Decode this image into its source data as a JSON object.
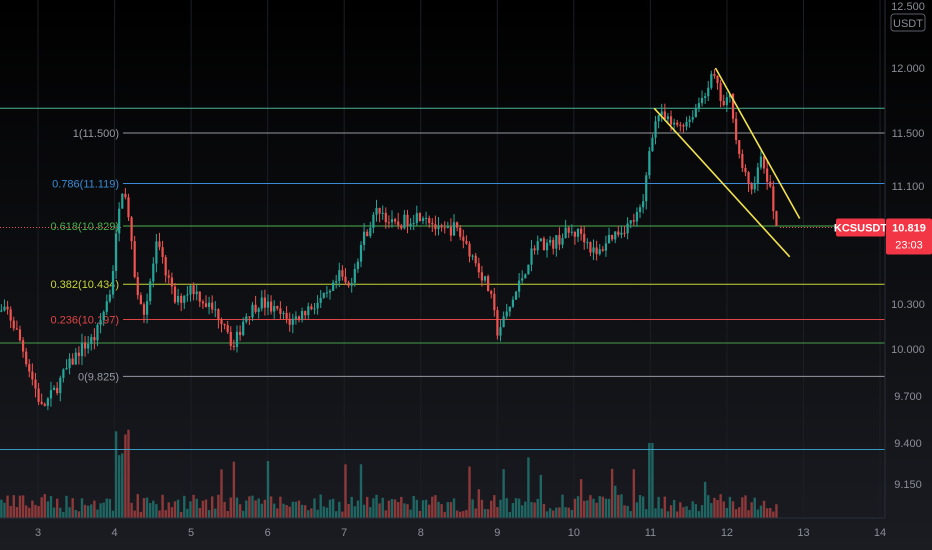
{
  "chart_data": {
    "type": "candlestick",
    "symbol": "KCSUSDT",
    "currency": "USDT",
    "last_price": "10.819",
    "countdown": "23:03",
    "x_ticks": [
      "3",
      "4",
      "5",
      "6",
      "7",
      "8",
      "9",
      "10",
      "11",
      "12",
      "13",
      "14"
    ],
    "y_ticks": [
      "12.500",
      "12.000",
      "11.500",
      "11.100",
      "10.300",
      "10.000",
      "9.700",
      "9.400",
      "9.150"
    ],
    "price_path": [
      [
        2.4,
        10.22
      ],
      [
        2.6,
        10.25
      ],
      [
        2.75,
        10.08
      ],
      [
        2.9,
        9.85
      ],
      [
        3.05,
        9.62
      ],
      [
        3.2,
        9.72
      ],
      [
        3.35,
        9.85
      ],
      [
        3.55,
        10.0
      ],
      [
        3.75,
        10.08
      ],
      [
        3.95,
        10.4
      ],
      [
        4.05,
        10.9
      ],
      [
        4.12,
        11.15
      ],
      [
        4.2,
        10.78
      ],
      [
        4.3,
        10.35
      ],
      [
        4.4,
        10.25
      ],
      [
        4.55,
        10.7
      ],
      [
        4.65,
        10.55
      ],
      [
        4.8,
        10.3
      ],
      [
        5.0,
        10.42
      ],
      [
        5.2,
        10.3
      ],
      [
        5.45,
        10.18
      ],
      [
        5.55,
        10.0
      ],
      [
        5.7,
        10.22
      ],
      [
        5.9,
        10.32
      ],
      [
        6.1,
        10.25
      ],
      [
        6.3,
        10.18
      ],
      [
        6.55,
        10.28
      ],
      [
        6.8,
        10.35
      ],
      [
        6.95,
        10.5
      ],
      [
        7.05,
        10.4
      ],
      [
        7.25,
        10.75
      ],
      [
        7.45,
        10.95
      ],
      [
        7.65,
        10.82
      ],
      [
        7.85,
        10.88
      ],
      [
        8.05,
        10.92
      ],
      [
        8.25,
        10.78
      ],
      [
        8.45,
        10.82
      ],
      [
        8.6,
        10.7
      ],
      [
        8.75,
        10.55
      ],
      [
        8.9,
        10.38
      ],
      [
        9.0,
        10.12
      ],
      [
        9.1,
        10.2
      ],
      [
        9.3,
        10.45
      ],
      [
        9.5,
        10.72
      ],
      [
        9.7,
        10.7
      ],
      [
        9.9,
        10.78
      ],
      [
        10.1,
        10.78
      ],
      [
        10.3,
        10.62
      ],
      [
        10.45,
        10.75
      ],
      [
        10.6,
        10.8
      ],
      [
        10.75,
        10.85
      ],
      [
        10.9,
        10.95
      ],
      [
        11.0,
        11.45
      ],
      [
        11.1,
        11.65
      ],
      [
        11.3,
        11.55
      ],
      [
        11.5,
        11.6
      ],
      [
        11.7,
        11.8
      ],
      [
        11.82,
        11.95
      ],
      [
        11.95,
        11.7
      ],
      [
        12.05,
        11.78
      ],
      [
        12.15,
        11.35
      ],
      [
        12.3,
        11.05
      ],
      [
        12.45,
        11.3
      ],
      [
        12.55,
        11.1
      ],
      [
        12.65,
        10.82
      ]
    ],
    "fib_levels": [
      {
        "label": "1(11.500)",
        "value": 11.5,
        "color": "#9598a1"
      },
      {
        "label": "0.786(11.119)",
        "value": 11.119,
        "color": "#3a8bd6"
      },
      {
        "label": "0.618(10.829)",
        "value": 10.829,
        "color": "#4caf50"
      },
      {
        "label": "0.382(10.434)",
        "value": 10.434,
        "color": "#c6d63a"
      },
      {
        "label": "0.236(10.197)",
        "value": 10.197,
        "color": "#e04545"
      },
      {
        "label": "0(9.825)",
        "value": 9.825,
        "color": "#9598a1"
      }
    ],
    "horizontal_lines": [
      {
        "value": 11.69,
        "color": "#53c6a6"
      },
      {
        "value": 10.04,
        "color": "#4caf50"
      },
      {
        "value": 9.36,
        "color": "#3fa7d6"
      }
    ],
    "trendlines": [
      {
        "from": [
          11.05,
          11.69
        ],
        "to": [
          12.82,
          10.62
        ],
        "color": "#f2e34c"
      },
      {
        "from": [
          11.85,
          12.0
        ],
        "to": [
          12.95,
          10.88
        ],
        "color": "#f2e34c"
      }
    ],
    "colors": {
      "up": "#26a69a",
      "down": "#ef5350",
      "tag": "#f23645"
    }
  }
}
